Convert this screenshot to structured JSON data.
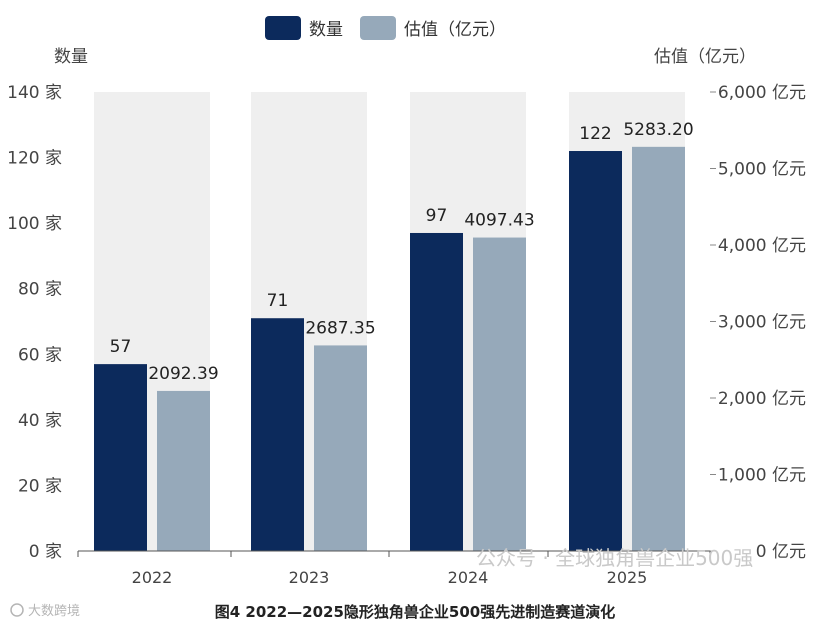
{
  "colors": {
    "count": "#0c2a5c",
    "valuation": "#96a9ba",
    "band": "#efefef"
  },
  "chart_data": {
    "type": "bar",
    "categories": [
      "2022",
      "2023",
      "2024",
      "2025"
    ],
    "series": [
      {
        "name": "数量",
        "axis": "left",
        "values": [
          57,
          71,
          97,
          122
        ],
        "labels": [
          "57",
          "71",
          "97",
          "122"
        ]
      },
      {
        "name": "估值（亿元）",
        "axis": "right",
        "values": [
          2092.39,
          2687.35,
          4097.43,
          5283.2
        ],
        "labels": [
          "2092.39",
          "2687.35",
          "4097.43",
          "5283.20"
        ]
      }
    ],
    "left_axis": {
      "title": "数量",
      "range": [
        0,
        140
      ],
      "ticks": [
        "0 家",
        "20 家",
        "40 家",
        "60 家",
        "80 家",
        "100 家",
        "120 家",
        "140 家"
      ]
    },
    "right_axis": {
      "title": "估值（亿元）",
      "range": [
        0,
        6000
      ],
      "ticks": [
        "0 亿元",
        "1,000 亿元",
        "2,000 亿元",
        "3,000 亿元",
        "4,000 亿元",
        "5,000 亿元",
        "6,000 亿元"
      ]
    },
    "legend_position": "top-center"
  },
  "caption": "图4 2022—2025隐形独角兽企业500强先进制造赛道演化",
  "watermark": "公众号 · 全球独角兽企业500强",
  "watermark_small": "大数跨境"
}
